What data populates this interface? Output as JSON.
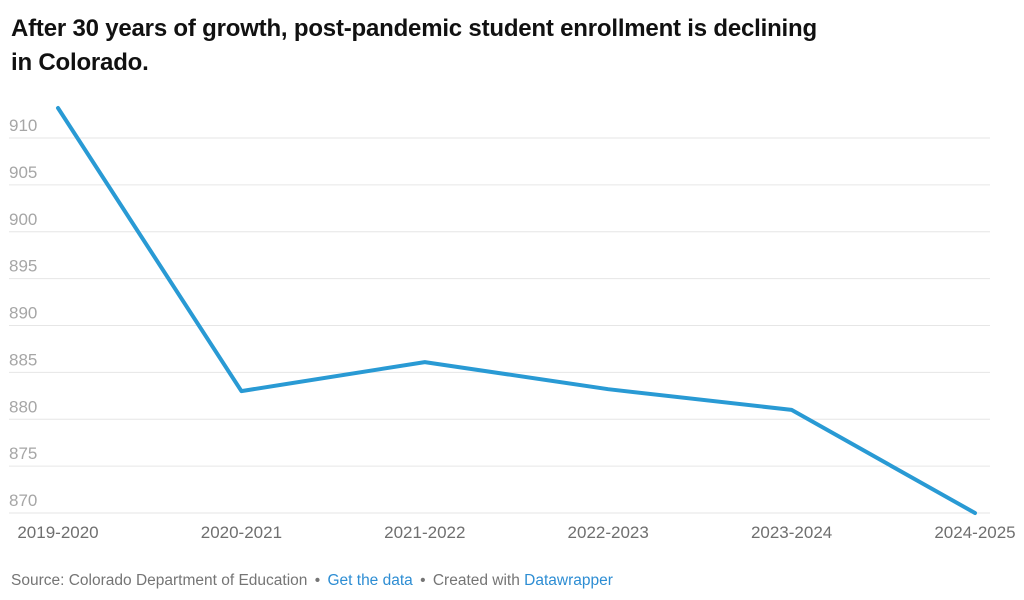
{
  "title": {
    "line1": "After 30 years of growth, post-pandemic student enrollment is declining",
    "line2": "in Colorado.",
    "full": "After 30 years of growth, post-pandemic student enrollment is declining in Colorado."
  },
  "chart_data": {
    "type": "line",
    "categories": [
      "2019-2020",
      "2020-2021",
      "2021-2022",
      "2022-2023",
      "2023-2024",
      "2024-2025"
    ],
    "values": [
      913.2,
      883.0,
      886.1,
      883.2,
      881.0,
      870.0
    ],
    "title": "After 30 years of growth, post-pandemic student enrollment is declining in Colorado.",
    "xlabel": "",
    "ylabel": "",
    "ylim": [
      870,
      910
    ],
    "yticks": [
      870,
      875,
      880,
      885,
      890,
      895,
      900,
      905,
      910
    ],
    "grid": true,
    "legend_position": "none"
  },
  "footer": {
    "source_label": "Source:",
    "source_text": "Colorado Department of Education",
    "separator": "•",
    "get_data_link": "Get the data",
    "created_with_text": "Created with",
    "datawrapper_link": "Datawrapper"
  },
  "colors": {
    "line": "#299ad4",
    "link": "#2d8dd3",
    "grid": "#e6e6e6",
    "y_tick_label": "#a6a6a6",
    "x_tick_label": "#6f6f6f",
    "footer_text": "#757575",
    "title": "#111111",
    "background": "#ffffff"
  }
}
